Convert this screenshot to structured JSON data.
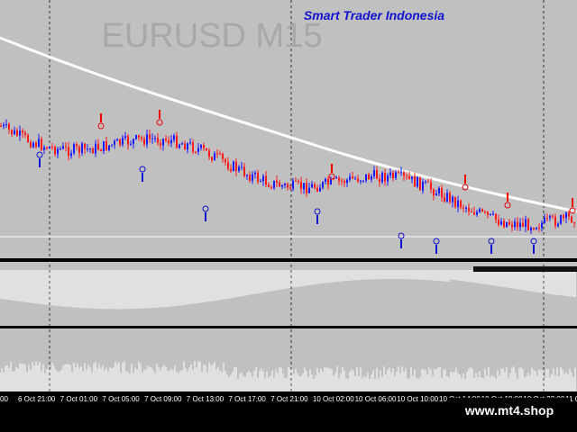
{
  "header": {
    "brand": "Smart Trader Indonesia",
    "symbol": "EURUSD M15"
  },
  "time_axis": {
    "labels": [
      "00",
      "6 Oct 21:00",
      "7 Oct 01:00",
      "7 Oct 05:00",
      "7 Oct 09:00",
      "7 Oct 13:00",
      "7 Oct 17:00",
      "7 Oct 21:00",
      "10 Oct 02:00",
      "10 Oct 06:00",
      "10 Oct 10:00",
      "10 Oct 14:00",
      "10 Oct 18:00",
      "10 Oct 22:00",
      "11 O"
    ]
  },
  "watermark": "www.mt4.shop"
}
